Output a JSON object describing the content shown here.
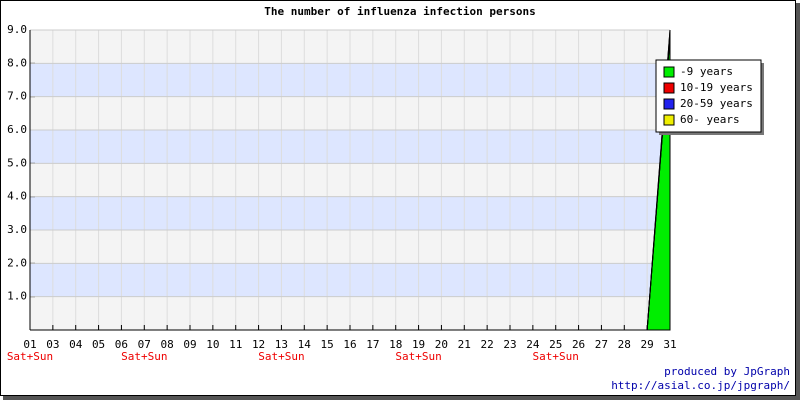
{
  "chart_data": {
    "type": "stacked-area",
    "title": "The number of influenza infection persons",
    "categories": [
      "01",
      "03",
      "04",
      "05",
      "06",
      "07",
      "08",
      "09",
      "10",
      "11",
      "12",
      "13",
      "14",
      "15",
      "16",
      "17",
      "18",
      "19",
      "20",
      "21",
      "22",
      "23",
      "24",
      "25",
      "26",
      "27",
      "28",
      "29",
      "31"
    ],
    "sublabels": [
      "Sat+Sun",
      null,
      null,
      null,
      null,
      "Sat+Sun",
      null,
      null,
      null,
      null,
      null,
      "Sat+Sun",
      null,
      null,
      null,
      null,
      null,
      "Sat+Sun",
      null,
      null,
      null,
      null,
      null,
      "Sat+Sun",
      null,
      null,
      null,
      null,
      null
    ],
    "series": [
      {
        "name": "-9 years",
        "color": "#00ee00",
        "values": [
          0,
          0,
          0,
          0,
          0,
          0,
          0,
          0,
          0,
          0,
          0,
          0,
          0,
          0,
          0,
          0,
          0,
          0,
          0,
          0,
          0,
          0,
          0,
          0,
          0,
          0,
          0,
          0,
          8.8
        ]
      },
      {
        "name": "10-19 years",
        "color": "#ee0000",
        "values": [
          0,
          0,
          0,
          0,
          0,
          0,
          0,
          0,
          0,
          0,
          0,
          0,
          0,
          0,
          0,
          0,
          0,
          0,
          0,
          0,
          0,
          0,
          0,
          0,
          0,
          0,
          0,
          0,
          0
        ]
      },
      {
        "name": "20-59 years",
        "color": "#2222ee",
        "values": [
          0,
          0,
          0,
          0,
          0,
          0,
          0,
          0,
          0,
          0,
          0,
          0,
          0,
          0,
          0,
          0,
          0,
          0,
          0,
          0,
          0,
          0,
          0,
          0,
          0,
          0,
          0,
          0,
          0.2
        ]
      },
      {
        "name": "60- years",
        "color": "#eeee00",
        "values": [
          0,
          0,
          0,
          0,
          0,
          0,
          0,
          0,
          0,
          0,
          0,
          0,
          0,
          0,
          0,
          0,
          0,
          0,
          0,
          0,
          0,
          0,
          0,
          0,
          0,
          0,
          0,
          0,
          0
        ]
      }
    ],
    "ylim": [
      0,
      9
    ],
    "yticks": [
      {
        "value": 1,
        "label": "1.0"
      },
      {
        "value": 2,
        "label": "2.0"
      },
      {
        "value": 3,
        "label": "3.0"
      },
      {
        "value": 4,
        "label": "4.0"
      },
      {
        "value": 5,
        "label": "5.0"
      },
      {
        "value": 6,
        "label": "6.0"
      },
      {
        "value": 7,
        "label": "7.0"
      },
      {
        "value": 8,
        "label": "8.0"
      },
      {
        "value": 9,
        "label": "9.0"
      }
    ],
    "grid": true,
    "legend": "top-right",
    "credits": [
      "produced by JpGraph",
      "http://asial.co.jp/jpgraph/"
    ]
  }
}
